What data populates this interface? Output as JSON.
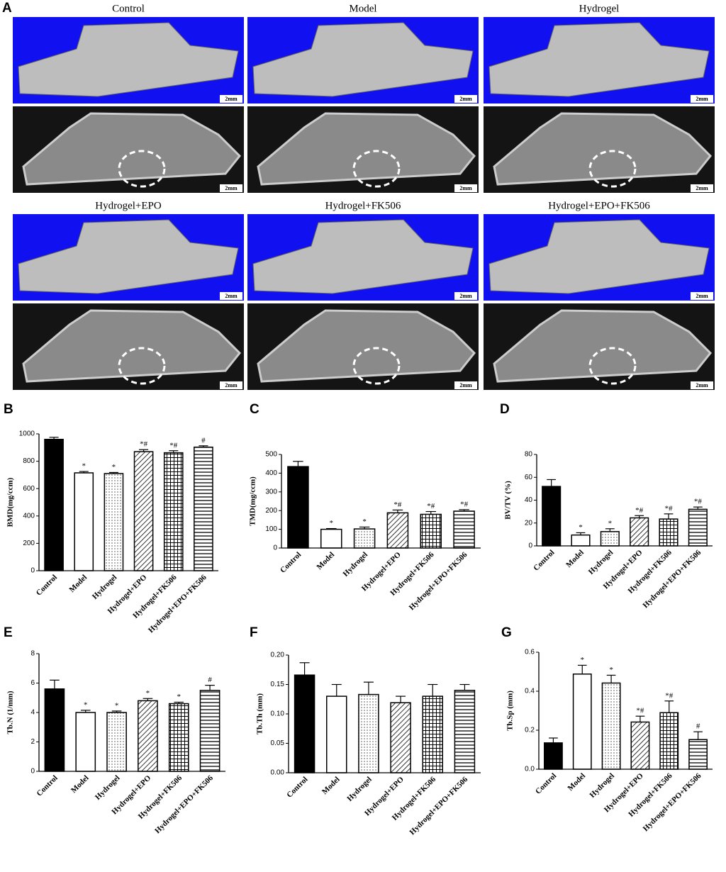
{
  "panel_a": {
    "label": "A",
    "groups": [
      "Control",
      "Model",
      "Hydrogel",
      "Hydrogel+EPO",
      "Hydrogel+FK506",
      "Hydrogel+EPO+FK506"
    ],
    "scale_bar": "2mm"
  },
  "chart_data": [
    {
      "type": "bar",
      "panel": "B",
      "ylabel": "BMD(mg/ccm)",
      "categories": [
        "Control",
        "Model",
        "Hydrogel",
        "Hydrogel+EPO",
        "Hydrogel+FK506",
        "Hydrogel+EPO+FK506"
      ],
      "values": [
        960,
        715,
        710,
        870,
        862,
        903
      ],
      "errors": [
        15,
        10,
        8,
        15,
        15,
        10
      ],
      "annotations": [
        null,
        "*",
        "*",
        "*#",
        "*#",
        "#"
      ],
      "ylim": [
        0,
        1000
      ],
      "yticks": [
        0,
        200,
        400,
        600,
        800,
        1000
      ]
    },
    {
      "type": "bar",
      "panel": "C",
      "ylabel": "TMD(mg/ccm)",
      "categories": [
        "Control",
        "Model",
        "Hydrogel",
        "Hydrogel+EPO",
        "Hydrogel+FK506",
        "Hydrogel+EPO+FK506"
      ],
      "values": [
        435,
        100,
        102,
        188,
        180,
        197
      ],
      "errors": [
        28,
        4,
        10,
        15,
        15,
        8
      ],
      "annotations": [
        null,
        "*",
        "*",
        "*#",
        "*#",
        "*#"
      ],
      "ylim": [
        0,
        500
      ],
      "yticks": [
        0,
        100,
        200,
        300,
        400,
        500
      ]
    },
    {
      "type": "bar",
      "panel": "D",
      "ylabel": "BV/TV (%)",
      "categories": [
        "Control",
        "Model",
        "Hydrogel",
        "Hydrogel+EPO",
        "Hydrogel+FK506",
        "Hydrogel+EPO+FK506"
      ],
      "values": [
        52,
        9.5,
        12.5,
        24.5,
        23.5,
        32
      ],
      "errors": [
        6,
        2,
        2.5,
        2,
        4.5,
        2
      ],
      "annotations": [
        null,
        "*",
        "*",
        "*#",
        "*#",
        "*#"
      ],
      "ylim": [
        0,
        80
      ],
      "yticks": [
        0,
        20,
        40,
        60,
        80
      ]
    },
    {
      "type": "bar",
      "panel": "E",
      "ylabel": "Tb.N (1/mm)",
      "categories": [
        "Control",
        "Model",
        "Hydrogel",
        "Hydrogel+EPO",
        "Hydrogel+FK506",
        "Hydrogel+EPO+FK506"
      ],
      "values": [
        5.6,
        4.0,
        4.0,
        4.8,
        4.6,
        5.5
      ],
      "errors": [
        0.6,
        0.15,
        0.1,
        0.15,
        0.1,
        0.35
      ],
      "annotations": [
        null,
        "*",
        "*",
        "*",
        "*",
        "#"
      ],
      "ylim": [
        0,
        8
      ],
      "yticks": [
        0,
        2,
        4,
        6,
        8
      ]
    },
    {
      "type": "bar",
      "panel": "F",
      "ylabel": "Tb.Th (mm)",
      "categories": [
        "Control",
        "Model",
        "Hydrogel",
        "Hydrogel+EPO",
        "Hydrogel+FK506",
        "Hydrogel+EPO+FK506"
      ],
      "values": [
        0.166,
        0.13,
        0.133,
        0.119,
        0.13,
        0.14
      ],
      "errors": [
        0.021,
        0.02,
        0.021,
        0.011,
        0.02,
        0.01
      ],
      "ylim": [
        0,
        0.2
      ],
      "yticks": [
        {
          "value": 0,
          "label": "0.00"
        },
        0.05,
        {
          "value": 0.1,
          "label": "0.10"
        },
        0.15,
        {
          "value": 0.2,
          "label": "0.20"
        }
      ]
    },
    {
      "type": "bar",
      "panel": "G",
      "ylabel": "Tb.Sp (mm)",
      "categories": [
        "Control",
        "Model",
        "Hydrogel",
        "Hydrogel+EPO",
        "Hydrogel+FK506",
        "Hydrogel+EPO+FK506"
      ],
      "values": [
        0.135,
        0.488,
        0.442,
        0.242,
        0.29,
        0.152
      ],
      "errors": [
        0.025,
        0.045,
        0.04,
        0.03,
        0.06,
        0.04
      ],
      "annotations": [
        null,
        "*",
        "*",
        "*#",
        "*#",
        "#"
      ],
      "ylim": [
        0,
        0.6
      ],
      "yticks": [
        {
          "value": 0,
          "label": "0.0"
        },
        0.2,
        0.4,
        0.6
      ]
    }
  ]
}
